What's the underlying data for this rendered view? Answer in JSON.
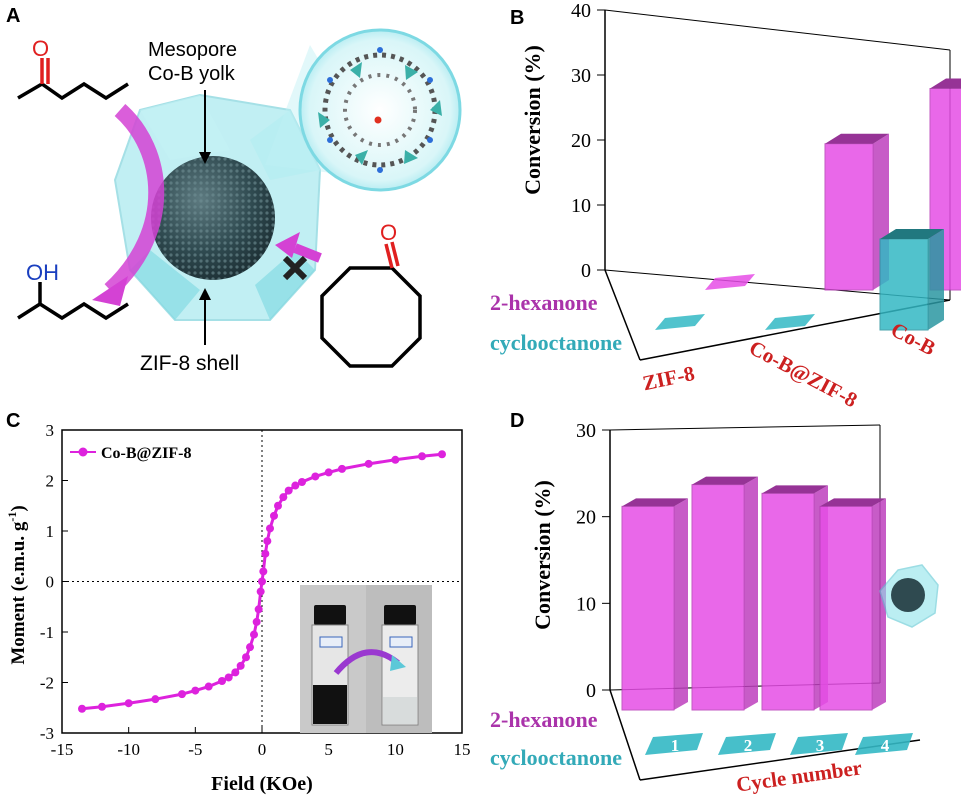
{
  "panels": {
    "a": {
      "letter": "A",
      "yolk_label_line1": "Mesopore",
      "yolk_label_line2": "Co-B yolk",
      "shell_label": "ZIF-8 shell",
      "oh_label": "OH",
      "o_label_top": "O",
      "o_label_ring": "O",
      "colors": {
        "shell": "#7fdde6",
        "arrow": "#cc33cc",
        "oxygen": "#e02020"
      }
    }
  },
  "chart_data": [
    {
      "panel": "B",
      "letter": "B",
      "type": "bar",
      "ylabel": "Conversion (%)",
      "ylim": [
        0,
        40
      ],
      "yticks": [
        "0",
        "10",
        "20",
        "30",
        "40"
      ],
      "categories": [
        "ZIF-8",
        "Co-B@ZIF-8",
        "Co-B"
      ],
      "series": [
        {
          "name": "2-hexanone",
          "values": [
            0,
            22.5,
            31
          ],
          "color": "#e64ee6"
        },
        {
          "name": "cyclooctanone",
          "values": [
            0,
            0,
            14
          ],
          "color": "#33b8c4"
        }
      ]
    },
    {
      "panel": "C",
      "letter": "C",
      "type": "scatter",
      "xlabel": "Field (KOe)",
      "ylabel": "Moment (e.m.u. g-1)",
      "ylabel_main": "Moment (e.m.u. g",
      "ylabel_sup": "-1",
      "ylabel_end": ")",
      "xlim": [
        -15,
        15
      ],
      "ylim": [
        -3,
        3
      ],
      "xticks": [
        "-15",
        "-10",
        "-5",
        "0",
        "5",
        "10",
        "15"
      ],
      "yticks": [
        "-3",
        "-2",
        "-1",
        "0",
        "1",
        "2",
        "3"
      ],
      "legend": "top-left",
      "series": [
        {
          "name": "Co-B@ZIF-8",
          "color": "#dd22dd",
          "x": [
            -13.5,
            -12,
            -10,
            -8,
            -6,
            -5,
            -4,
            -3,
            -2.5,
            -2,
            -1.6,
            -1.2,
            -0.9,
            -0.6,
            -0.4,
            -0.25,
            -0.1,
            0,
            0.1,
            0.25,
            0.4,
            0.6,
            0.9,
            1.2,
            1.6,
            2,
            2.5,
            3,
            4,
            5,
            6,
            8,
            10,
            12,
            13.5
          ],
          "y": [
            -2.52,
            -2.48,
            -2.41,
            -2.33,
            -2.23,
            -2.16,
            -2.08,
            -1.97,
            -1.9,
            -1.8,
            -1.67,
            -1.5,
            -1.3,
            -1.05,
            -0.8,
            -0.55,
            -0.2,
            0,
            0.2,
            0.55,
            0.8,
            1.05,
            1.3,
            1.5,
            1.67,
            1.8,
            1.9,
            1.97,
            2.08,
            2.16,
            2.23,
            2.33,
            2.41,
            2.48,
            2.52
          ]
        }
      ]
    },
    {
      "panel": "D",
      "letter": "D",
      "type": "bar",
      "xlabel": "Cycle number",
      "ylabel": "Conversion (%)",
      "ylim": [
        0,
        30
      ],
      "yticks": [
        "0",
        "10",
        "20",
        "30"
      ],
      "categories": [
        "1",
        "2",
        "3",
        "4"
      ],
      "series": [
        {
          "name": "2-hexanone",
          "values": [
            23.5,
            26,
            25,
            23.5
          ],
          "color": "#e64ee6"
        },
        {
          "name": "cyclooctanone",
          "values": [
            0,
            0,
            0,
            0
          ],
          "color": "#33b8c4"
        }
      ]
    }
  ]
}
